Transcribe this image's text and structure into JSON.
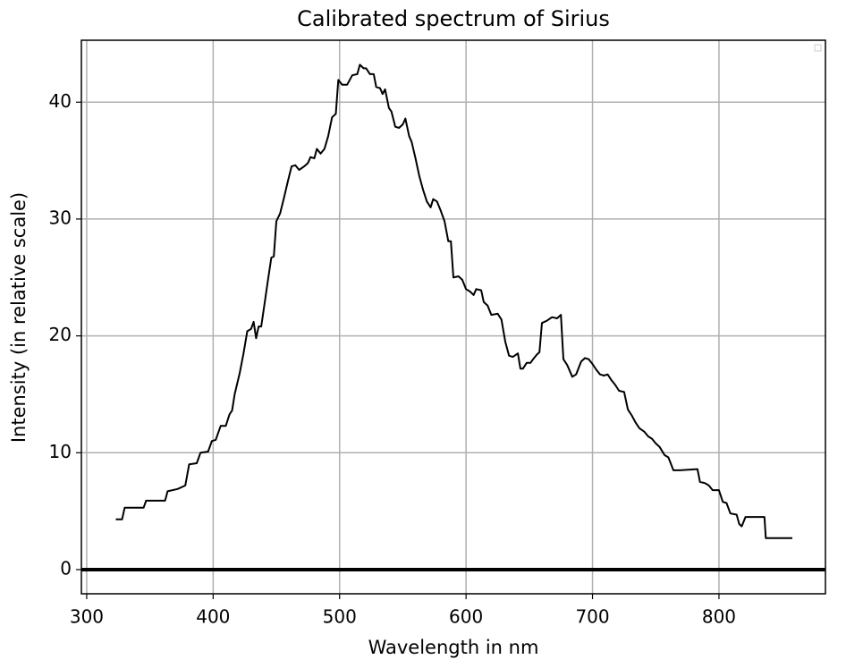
{
  "chart_data": {
    "type": "line",
    "title": "Calibrated spectrum of Sirius",
    "xlabel": "Wavelength in nm",
    "ylabel": "Intensity (in relative scale)",
    "xlim": [
      295.8,
      884.2
    ],
    "ylim": [
      -2.07,
      45.3
    ],
    "xticks": [
      300,
      400,
      500,
      600,
      700,
      800
    ],
    "yticks": [
      0,
      10,
      20,
      30,
      40
    ],
    "grid": true,
    "hline": 0,
    "series": [
      {
        "color": "#000000",
        "x": [
          323,
          328,
          330,
          345,
          347,
          362,
          364,
          372,
          378,
          381,
          387,
          390,
          396,
          399,
          402,
          406,
          410,
          413,
          415,
          417,
          421,
          424,
          427,
          430,
          432,
          434,
          436,
          438,
          441,
          443,
          446,
          448,
          450,
          453,
          456,
          459,
          462,
          465,
          468,
          472,
          475,
          477,
          480,
          482,
          485,
          488,
          491,
          494,
          497,
          499,
          502,
          506,
          510,
          514,
          516,
          519,
          521,
          524,
          527,
          529,
          532,
          534,
          536,
          539,
          541,
          544,
          547,
          550,
          552,
          555,
          557,
          560,
          563,
          566,
          569,
          572,
          574,
          577,
          580,
          583,
          586,
          588,
          590,
          594,
          597,
          600,
          603,
          606,
          608,
          612,
          614,
          617,
          620,
          625,
          628,
          631,
          634,
          637,
          641,
          643,
          645,
          648,
          651,
          653,
          656,
          658,
          660,
          664,
          668,
          672,
          675,
          677,
          680,
          684,
          687,
          691,
          694,
          697,
          700,
          703,
          706,
          709,
          712,
          715,
          718,
          721,
          725,
          728,
          731,
          734,
          737,
          741,
          744,
          747,
          750,
          753,
          757,
          760,
          764,
          769,
          783,
          785,
          789,
          792,
          795,
          797,
          800,
          803,
          806,
          809,
          814,
          816,
          818,
          821,
          836,
          837,
          858
        ],
        "values": [
          4.3,
          4.3,
          5.3,
          5.3,
          5.9,
          5.9,
          6.7,
          6.9,
          7.2,
          9.0,
          9.1,
          10.0,
          10.1,
          11.0,
          11.1,
          12.3,
          12.3,
          13.3,
          13.6,
          15.0,
          16.8,
          18.5,
          20.4,
          20.6,
          21.2,
          19.8,
          20.8,
          20.8,
          23.0,
          24.5,
          26.7,
          26.8,
          29.8,
          30.5,
          31.8,
          33.2,
          34.5,
          34.6,
          34.2,
          34.5,
          34.8,
          35.3,
          35.2,
          36.0,
          35.6,
          36.0,
          37.1,
          38.7,
          39.0,
          41.9,
          41.5,
          41.5,
          42.3,
          42.4,
          43.2,
          42.9,
          42.9,
          42.4,
          42.4,
          41.3,
          41.2,
          40.7,
          41.1,
          39.5,
          39.2,
          37.9,
          37.8,
          38.1,
          38.6,
          37.1,
          36.6,
          35.2,
          33.7,
          32.5,
          31.5,
          31.0,
          31.7,
          31.5,
          30.7,
          29.8,
          28.1,
          28.1,
          25.0,
          25.1,
          24.8,
          24.0,
          23.8,
          23.5,
          24.0,
          23.9,
          22.9,
          22.6,
          21.8,
          21.9,
          21.4,
          19.5,
          18.3,
          18.2,
          18.5,
          17.2,
          17.2,
          17.7,
          17.7,
          18.0,
          18.4,
          18.6,
          21.1,
          21.3,
          21.6,
          21.5,
          21.8,
          18.0,
          17.5,
          16.5,
          16.7,
          17.8,
          18.1,
          18.0,
          17.6,
          17.1,
          16.7,
          16.6,
          16.7,
          16.2,
          15.8,
          15.3,
          15.2,
          13.7,
          13.2,
          12.6,
          12.1,
          11.8,
          11.4,
          11.2,
          10.8,
          10.5,
          9.8,
          9.6,
          8.5,
          8.5,
          8.6,
          7.5,
          7.4,
          7.2,
          6.8,
          6.8,
          6.8,
          5.8,
          5.7,
          4.8,
          4.7,
          3.9,
          3.7,
          4.5,
          4.5,
          2.7,
          2.7
        ]
      }
    ]
  }
}
